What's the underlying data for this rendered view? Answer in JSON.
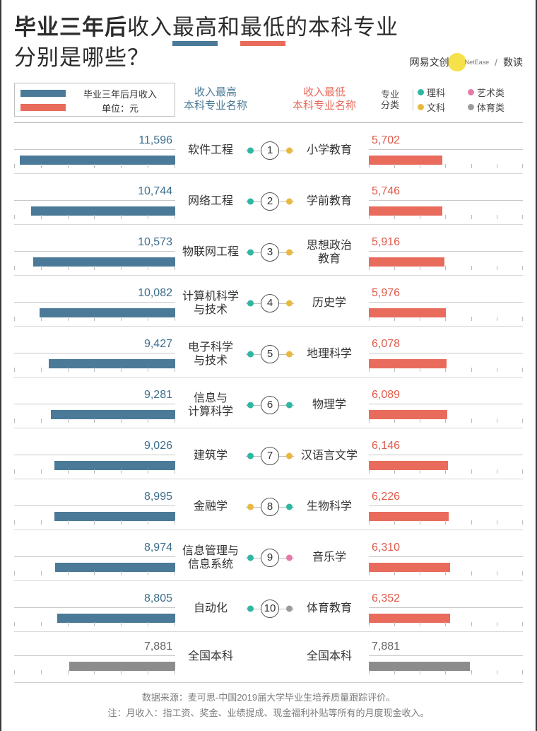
{
  "title": {
    "bold": "毕业三年后",
    "seg_plain1": "收入",
    "seg_high": "最高",
    "seg_plain2": "和",
    "seg_low": "最低",
    "seg_plain3": "的本科专业",
    "line2": "分别是哪些？"
  },
  "brand": {
    "text1": "网易文创",
    "netease": "NetEase",
    "slash": "/",
    "text2": "数读"
  },
  "legend": {
    "income_label": "毕业三年后月收入",
    "unit_label": "单位：元"
  },
  "col_heads": {
    "high_l1": "收入最高",
    "high_l2": "本科专业名称",
    "low_l1": "收入最低",
    "low_l2": "本科专业名称"
  },
  "categories": {
    "label_l1": "专业",
    "label_l2": "分类",
    "items": [
      {
        "name": "理科",
        "color": "#2fb7a2"
      },
      {
        "name": "文科",
        "color": "#e8b93e"
      },
      {
        "name": "艺术类",
        "color": "#e679a8"
      },
      {
        "name": "体育类",
        "color": "#9b9b9b"
      }
    ]
  },
  "colors": {
    "high_bar": "#4a7a97",
    "low_bar": "#e86b5c",
    "avg_bar": "#8c8c8c",
    "high_text": "#3c6e8c",
    "low_text": "#e15a4a"
  },
  "scale": {
    "max": 12000,
    "ticks": 6
  },
  "rows": [
    {
      "rank": 1,
      "high_major": "软件工程",
      "high_val": 11596,
      "high_cat": 0,
      "low_major": "小学教育",
      "low_val": 5702,
      "low_cat": 1
    },
    {
      "rank": 2,
      "high_major": "网络工程",
      "high_val": 10744,
      "high_cat": 0,
      "low_major": "学前教育",
      "low_val": 5746,
      "low_cat": 1
    },
    {
      "rank": 3,
      "high_major": "物联网工程",
      "high_val": 10573,
      "high_cat": 0,
      "low_major": "思想政治\n教育",
      "low_val": 5916,
      "low_cat": 1
    },
    {
      "rank": 4,
      "high_major": "计算机科学\n与技术",
      "high_val": 10082,
      "high_cat": 0,
      "low_major": "历史学",
      "low_val": 5976,
      "low_cat": 1
    },
    {
      "rank": 5,
      "high_major": "电子科学\n与技术",
      "high_val": 9427,
      "high_cat": 0,
      "low_major": "地理科学",
      "low_val": 6078,
      "low_cat": 1
    },
    {
      "rank": 6,
      "high_major": "信息与\n计算科学",
      "high_val": 9281,
      "high_cat": 0,
      "low_major": "物理学",
      "low_val": 6089,
      "low_cat": 0
    },
    {
      "rank": 7,
      "high_major": "建筑学",
      "high_val": 9026,
      "high_cat": 0,
      "low_major": "汉语言文学",
      "low_val": 6146,
      "low_cat": 1
    },
    {
      "rank": 8,
      "high_major": "金融学",
      "high_val": 8995,
      "high_cat": 1,
      "low_major": "生物科学",
      "low_val": 6226,
      "low_cat": 0
    },
    {
      "rank": 9,
      "high_major": "信息管理与\n信息系统",
      "high_val": 8974,
      "high_cat": 0,
      "low_major": "音乐学",
      "low_val": 6310,
      "low_cat": 2
    },
    {
      "rank": 10,
      "high_major": "自动化",
      "high_val": 8805,
      "high_cat": 0,
      "low_major": "体育教育",
      "low_val": 6352,
      "low_cat": 3
    }
  ],
  "average": {
    "label": "全国本科",
    "value": 7881
  },
  "footer": {
    "l1": "数据来源：麦可思-中国2019届大学毕业生培养质量跟踪评价。",
    "l2": "注：月收入：指工资、奖金、业绩提成、现金福利补贴等所有的月度现金收入。"
  }
}
